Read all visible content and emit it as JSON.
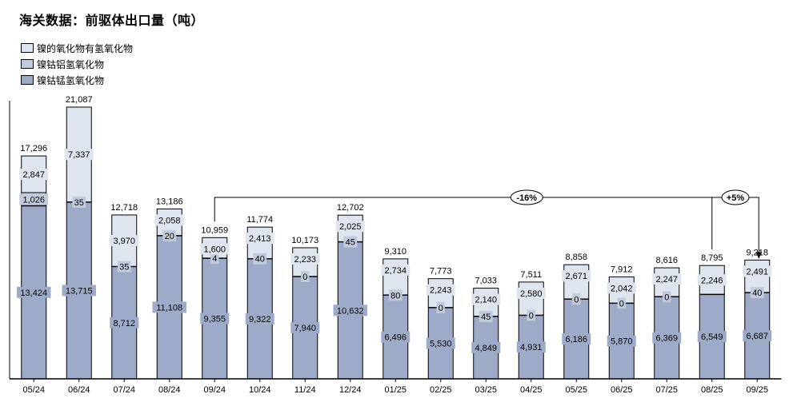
{
  "chart_data": {
    "type": "bar",
    "stacked": true,
    "title": "海关数据：前驱体出口量（吨）",
    "categories": [
      "05/24",
      "06/24",
      "07/24",
      "08/24",
      "09/24",
      "10/24",
      "11/24",
      "12/24",
      "01/25",
      "02/25",
      "03/25",
      "04/25",
      "05/25",
      "06/25",
      "07/25",
      "08/25",
      "09/25"
    ],
    "series": [
      {
        "name": "镍钴锰氢氧化物",
        "color": "#9dabc9",
        "values": [
          13424,
          13715,
          8712,
          11108,
          9355,
          9322,
          7940,
          10632,
          6496,
          5530,
          4849,
          4931,
          6186,
          5870,
          6369,
          6549,
          6687
        ]
      },
      {
        "name": "镍钴铝氢氧化物",
        "color": "#c2cbdb",
        "values": [
          1026,
          35,
          35,
          20,
          4,
          40,
          0,
          45,
          80,
          0,
          45,
          0,
          0,
          0,
          0,
          null,
          40
        ]
      },
      {
        "name": "镍的氧化物有氢氧化物",
        "color": "#dfe5ee",
        "values": [
          2847,
          7337,
          3970,
          2058,
          1600,
          2413,
          2233,
          2025,
          2734,
          2243,
          2140,
          2580,
          2671,
          2042,
          2247,
          2246,
          2491
        ]
      }
    ],
    "totals": [
      "17,296",
      "21,087",
      "12,718",
      "13,186",
      "10,959",
      "11,774",
      "10,173",
      "12,702",
      "9,310",
      "7,773",
      "7,033",
      "7,511",
      "8,858",
      "7,912",
      "8,616",
      "8,795",
      "9,218"
    ],
    "ylim": [
      0,
      22000
    ],
    "legend_position": "top-left",
    "annotations": [
      {
        "label": "-16%",
        "from": "09/24",
        "to": "09/25"
      },
      {
        "label": "+5%",
        "from": "08/25",
        "to": "09/25"
      }
    ]
  }
}
